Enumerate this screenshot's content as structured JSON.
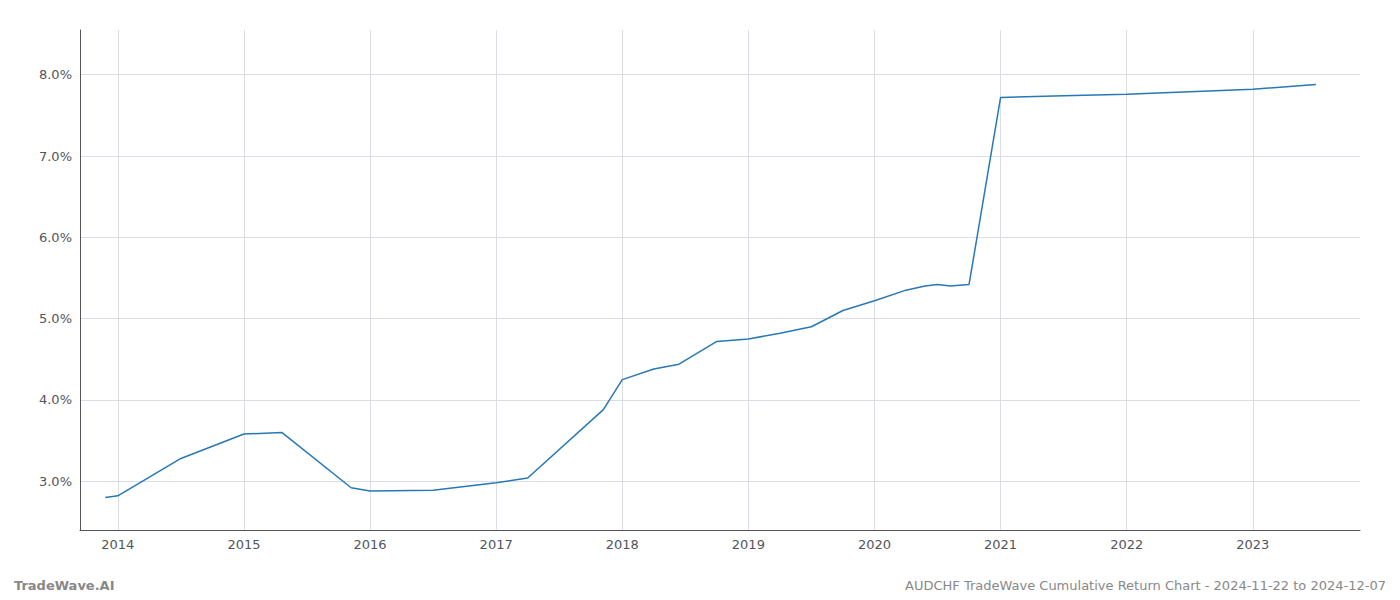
{
  "chart_data": {
    "type": "line",
    "x": [
      2013.9,
      2014.0,
      2014.5,
      2015.0,
      2015.3,
      2015.85,
      2016.0,
      2016.5,
      2017.0,
      2017.25,
      2017.85,
      2018.0,
      2018.25,
      2018.45,
      2018.75,
      2019.0,
      2019.25,
      2019.5,
      2019.75,
      2020.0,
      2020.25,
      2020.4,
      2020.5,
      2020.6,
      2020.75,
      2021.0,
      2021.5,
      2022.0,
      2022.5,
      2023.0,
      2023.5
    ],
    "values": [
      2.8,
      2.82,
      3.28,
      3.58,
      3.6,
      2.92,
      2.88,
      2.89,
      2.98,
      3.04,
      3.88,
      4.25,
      4.38,
      4.44,
      4.72,
      4.75,
      4.82,
      4.9,
      5.1,
      5.22,
      5.35,
      5.4,
      5.42,
      5.4,
      5.42,
      7.72,
      7.74,
      7.76,
      7.79,
      7.82,
      7.88
    ],
    "color": "#2878b5",
    "xlim": [
      2013.7,
      2023.85
    ],
    "xticks": [
      2014,
      2015,
      2016,
      2017,
      2018,
      2019,
      2020,
      2021,
      2022,
      2023
    ],
    "ylim": [
      2.4,
      8.55
    ],
    "yticks": [
      {
        "value": 3.0,
        "label": "3.0%"
      },
      {
        "value": 4.0,
        "label": "4.0%"
      },
      {
        "value": 5.0,
        "label": "5.0%"
      },
      {
        "value": 6.0,
        "label": "6.0%"
      },
      {
        "value": 7.0,
        "label": "7.0%"
      },
      {
        "value": 8.0,
        "label": "8.0%"
      }
    ],
    "grid": true,
    "annotations": [
      "TradeWave.AI",
      "AUDCHF TradeWave Cumulative Return Chart - 2024-11-22 to 2024-12-07"
    ]
  }
}
